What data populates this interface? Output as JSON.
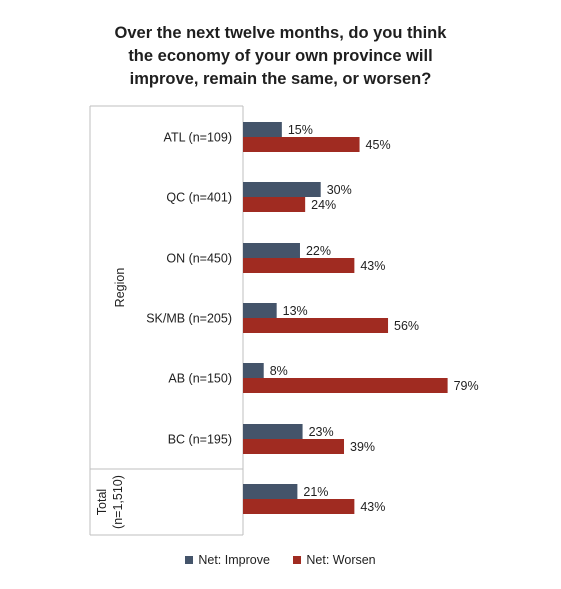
{
  "chart_data": {
    "type": "bar",
    "orientation": "horizontal",
    "title_lines": [
      "Over the next twelve months, do you think",
      "the economy of your own province will",
      "improve, remain the same, or worsen?"
    ],
    "groups": [
      {
        "label": "Region",
        "categories": [
          "ATL (n=109)",
          "QC (n=401)",
          "ON (n=450)",
          "SK/MB (n=205)",
          "AB (n=150)",
          "BC (n=195)"
        ]
      },
      {
        "label_lines": [
          "Total",
          "(n=1,510)"
        ],
        "categories": [
          ""
        ]
      }
    ],
    "categories": [
      "ATL (n=109)",
      "QC (n=401)",
      "ON (n=450)",
      "SK/MB (n=205)",
      "AB (n=150)",
      "BC (n=195)",
      ""
    ],
    "series": [
      {
        "name": "Net: Improve",
        "color": "#44546a",
        "values": [
          15,
          30,
          22,
          13,
          8,
          23,
          21
        ]
      },
      {
        "name": "Net: Worsen",
        "color": "#a02b21",
        "values": [
          45,
          24,
          43,
          56,
          79,
          39,
          43
        ]
      }
    ],
    "value_suffix": "%",
    "legend_position": "bottom",
    "grid": false
  }
}
